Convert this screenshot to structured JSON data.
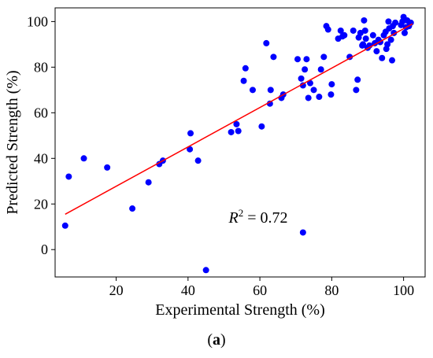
{
  "chart_data": {
    "type": "scatter",
    "xlabel": "Experimental Strength (%)",
    "ylabel": "Predicted Strength (%)",
    "xlim": [
      3,
      106
    ],
    "ylim": [
      -12,
      106
    ],
    "xticks": [
      20,
      40,
      60,
      80,
      100
    ],
    "yticks": [
      0,
      20,
      40,
      60,
      80,
      100
    ],
    "grid": false,
    "annotation": {
      "prefix": "R",
      "sup": "2",
      "suffix": " = 0.72"
    },
    "caption": {
      "open": "(",
      "letter": "a",
      "close": ")"
    },
    "colors": {
      "points": "#0000ff",
      "fit_line": "#ff0000",
      "axes": "#000000"
    },
    "fit_line": {
      "x": [
        5.8,
        102.5
      ],
      "y": [
        15.5,
        99
      ]
    },
    "points": [
      {
        "x": 5.8,
        "y": 10.5
      },
      {
        "x": 6.8,
        "y": 32
      },
      {
        "x": 11,
        "y": 40
      },
      {
        "x": 17.5,
        "y": 36
      },
      {
        "x": 24.5,
        "y": 18
      },
      {
        "x": 29,
        "y": 29.5
      },
      {
        "x": 32,
        "y": 37.5
      },
      {
        "x": 33,
        "y": 39
      },
      {
        "x": 40.5,
        "y": 44
      },
      {
        "x": 40.7,
        "y": 51
      },
      {
        "x": 42.8,
        "y": 39
      },
      {
        "x": 45,
        "y": -9
      },
      {
        "x": 52,
        "y": 51.5
      },
      {
        "x": 53.5,
        "y": 55
      },
      {
        "x": 54,
        "y": 52
      },
      {
        "x": 55.5,
        "y": 74
      },
      {
        "x": 56,
        "y": 79.5
      },
      {
        "x": 58,
        "y": 70
      },
      {
        "x": 60.5,
        "y": 54
      },
      {
        "x": 61.8,
        "y": 90.5
      },
      {
        "x": 62.8,
        "y": 64
      },
      {
        "x": 63,
        "y": 70
      },
      {
        "x": 63.8,
        "y": 84.5
      },
      {
        "x": 66,
        "y": 66.5
      },
      {
        "x": 66.5,
        "y": 68
      },
      {
        "x": 70.5,
        "y": 83.5
      },
      {
        "x": 71.5,
        "y": 75
      },
      {
        "x": 72,
        "y": 72
      },
      {
        "x": 72,
        "y": 7.5
      },
      {
        "x": 72.5,
        "y": 79
      },
      {
        "x": 73,
        "y": 83.5
      },
      {
        "x": 73.5,
        "y": 66.5
      },
      {
        "x": 74,
        "y": 73
      },
      {
        "x": 75,
        "y": 70
      },
      {
        "x": 76.5,
        "y": 67
      },
      {
        "x": 77,
        "y": 79
      },
      {
        "x": 77.8,
        "y": 84.5
      },
      {
        "x": 78.5,
        "y": 98
      },
      {
        "x": 79,
        "y": 96.5
      },
      {
        "x": 79.8,
        "y": 68
      },
      {
        "x": 80,
        "y": 72.5
      },
      {
        "x": 81.8,
        "y": 92.5
      },
      {
        "x": 82.5,
        "y": 96
      },
      {
        "x": 83,
        "y": 93.5
      },
      {
        "x": 83.5,
        "y": 94
      },
      {
        "x": 85,
        "y": 84.5
      },
      {
        "x": 86,
        "y": 96
      },
      {
        "x": 86.8,
        "y": 70
      },
      {
        "x": 87.2,
        "y": 74.5
      },
      {
        "x": 87.5,
        "y": 93
      },
      {
        "x": 88,
        "y": 95
      },
      {
        "x": 88.5,
        "y": 89.5
      },
      {
        "x": 88.7,
        "y": 90
      },
      {
        "x": 89,
        "y": 100.5
      },
      {
        "x": 89.3,
        "y": 96
      },
      {
        "x": 89.5,
        "y": 92.5
      },
      {
        "x": 90,
        "y": 88.5
      },
      {
        "x": 90.5,
        "y": 89.5
      },
      {
        "x": 91.5,
        "y": 94
      },
      {
        "x": 92,
        "y": 90.5
      },
      {
        "x": 92.5,
        "y": 87
      },
      {
        "x": 93,
        "y": 92
      },
      {
        "x": 93.5,
        "y": 91
      },
      {
        "x": 94,
        "y": 84
      },
      {
        "x": 94.5,
        "y": 94
      },
      {
        "x": 95,
        "y": 95.5
      },
      {
        "x": 95.2,
        "y": 88
      },
      {
        "x": 95.5,
        "y": 90
      },
      {
        "x": 95.8,
        "y": 100
      },
      {
        "x": 96,
        "y": 97
      },
      {
        "x": 96.5,
        "y": 92
      },
      {
        "x": 96.8,
        "y": 83
      },
      {
        "x": 97,
        "y": 98
      },
      {
        "x": 97.3,
        "y": 95
      },
      {
        "x": 97.7,
        "y": 99.5
      },
      {
        "x": 99.3,
        "y": 98.5
      },
      {
        "x": 99.7,
        "y": 100
      },
      {
        "x": 100,
        "y": 102
      },
      {
        "x": 100.3,
        "y": 95
      },
      {
        "x": 100.7,
        "y": 97.5
      },
      {
        "x": 101,
        "y": 100.5
      },
      {
        "x": 101.5,
        "y": 98
      },
      {
        "x": 102,
        "y": 99.5
      }
    ]
  }
}
